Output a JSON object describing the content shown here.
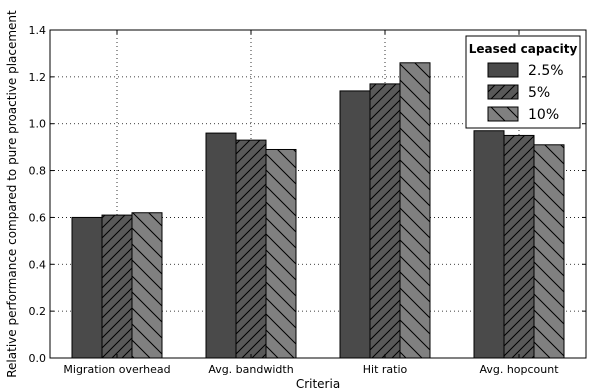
{
  "chart_data": {
    "type": "bar",
    "title": "",
    "xlabel": "Criteria",
    "ylabel": "Relative performance compared to pure proactive placement",
    "ylim": [
      0.0,
      1.4
    ],
    "yticks": [
      "0.0",
      "0.2",
      "0.4",
      "0.6",
      "0.8",
      "1.0",
      "1.2",
      "1.4"
    ],
    "grid": true,
    "legend_title": "Leased capacity",
    "legend_position": "top-right",
    "categories": [
      "Migration overhead",
      "Avg. bandwidth",
      "Hit ratio",
      "Avg. hopcount"
    ],
    "series": [
      {
        "name": "2.5%",
        "values": [
          0.6,
          0.96,
          1.14,
          0.97
        ],
        "color": "#4a4a4a",
        "hatch": "none"
      },
      {
        "name": "5%",
        "values": [
          0.61,
          0.93,
          1.17,
          0.95
        ],
        "color": "#595959",
        "hatch": "forward"
      },
      {
        "name": "10%",
        "values": [
          0.62,
          0.89,
          1.26,
          0.91
        ],
        "color": "#808080",
        "hatch": "back"
      }
    ]
  }
}
